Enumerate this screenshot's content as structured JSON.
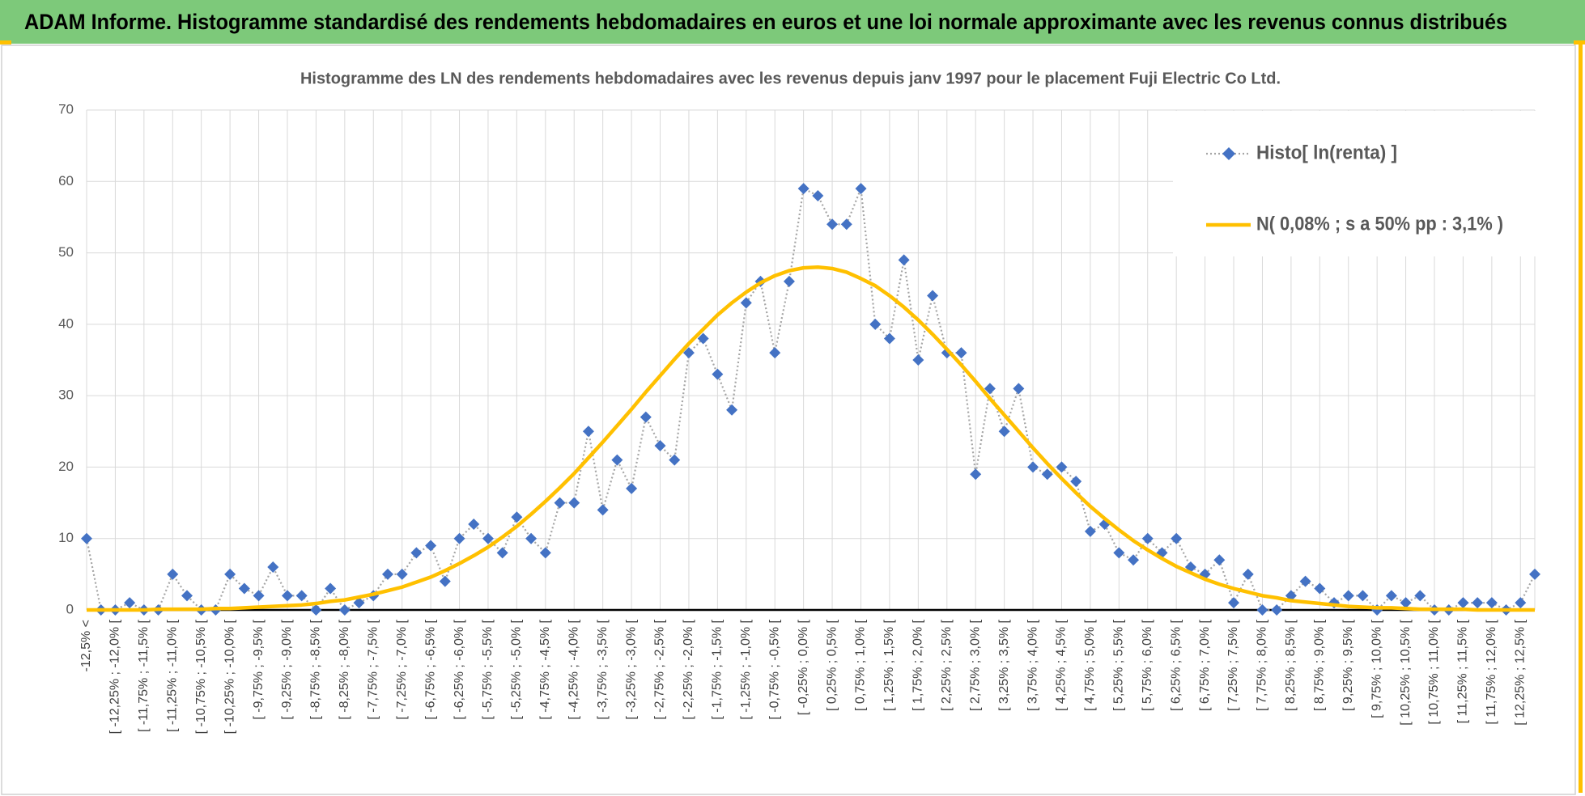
{
  "chart_data": {
    "type": "line",
    "title": "ADAM Informe. Histogramme standardisé des rendements hebdomadaires en euros et une loi normale approximante avec les revenus connus distribués",
    "subtitle": "Histogramme  des LN des rendements  hebdomadaires avec les revenus depuis janv 1997 pour le placement Fuji Electric  Co Ltd.",
    "categories": [
      "-12,5% <",
      null,
      "[ -12,25% ; -12,0% [",
      null,
      "[ -11,75% ; -11,5% [",
      null,
      "[ -11,25% ; -11,0% [",
      null,
      "[ -10,75% ; -10,5% [",
      null,
      "[ -10,25% ; -10,0% [",
      null,
      "[ -9,75% ; -9,5% [",
      null,
      "[ -9,25% ; -9,0% [",
      null,
      "[ -8,75% ; -8,5% [",
      null,
      "[ -8,25% ; -8,0% [",
      null,
      "[ -7,75% ; -7,5% [",
      null,
      "[ -7,25% ; -7,0% [",
      null,
      "[ -6,75% ; -6,5% [",
      null,
      "[ -6,25% ; -6,0% [",
      null,
      "[ -5,75% ; -5,5% [",
      null,
      "[ -5,25% ; -5,0% [",
      null,
      "[ -4,75% ; -4,5% [",
      null,
      "[ -4,25% ; -4,0% [",
      null,
      "[ -3,75% ; -3,5% [",
      null,
      "[ -3,25% ; -3,0% [",
      null,
      "[ -2,75% ; -2,5% [",
      null,
      "[ -2,25% ; -2,0% [",
      null,
      "[ -1,75% ; -1,5% [",
      null,
      "[ -1,25% ; -1,0% [",
      null,
      "[ -0,75% ; -0,5% [",
      null,
      "[ -0,25% ; 0,0% [",
      null,
      "[ 0,25% ; 0,5% [",
      null,
      "[ 0,75% ; 1,0% [",
      null,
      "[ 1,25% ; 1,5% [",
      null,
      "[ 1,75% ; 2,0% [",
      null,
      "[ 2,25% ; 2,5% [",
      null,
      "[ 2,75% ; 3,0% [",
      null,
      "[ 3,25% ; 3,5% [",
      null,
      "[ 3,75% ; 4,0% [",
      null,
      "[ 4,25% ; 4,5% [",
      null,
      "[ 4,75% ; 5,0% [",
      null,
      "[ 5,25% ; 5,5% [",
      null,
      "[ 5,75% ; 6,0% [",
      null,
      "[ 6,25% ; 6,5% [",
      null,
      "[ 6,75% ; 7,0% [",
      null,
      "[ 7,25% ; 7,5% [",
      null,
      "[ 7,75% ; 8,0% [",
      null,
      "[ 8,25% ; 8,5% [",
      null,
      "[ 8,75% ; 9,0% [",
      null,
      "[ 9,25% ; 9,5% [",
      null,
      "[ 9,75% ; 10,0% [",
      null,
      "[ 10,25% ; 10,5% [",
      null,
      "[ 10,75% ; 11,0% [",
      null,
      "[ 11,25% ; 11,5% [",
      null,
      "[ 11,75% ; 12,0% [",
      null,
      "[ 12,25% ; 12,5% [",
      null
    ],
    "series": [
      {
        "name": "Histo[ ln(renta) ]",
        "color": "#4472c4",
        "line_color": "#a5a5a5",
        "marker": "diamond",
        "line_style": "dotted",
        "values": [
          10,
          0,
          0,
          1,
          0,
          0,
          5,
          2,
          0,
          0,
          5,
          3,
          2,
          6,
          2,
          2,
          0,
          3,
          0,
          1,
          2,
          5,
          5,
          8,
          9,
          4,
          10,
          12,
          10,
          8,
          13,
          10,
          8,
          15,
          15,
          25,
          14,
          21,
          17,
          27,
          23,
          21,
          36,
          38,
          33,
          28,
          43,
          46,
          36,
          46,
          59,
          58,
          54,
          54,
          59,
          40,
          38,
          49,
          35,
          44,
          36,
          36,
          19,
          31,
          25,
          31,
          20,
          19,
          20,
          18,
          11,
          12,
          8,
          7,
          10,
          8,
          10,
          6,
          5,
          7,
          1,
          5,
          0,
          0,
          2,
          4,
          3,
          1,
          2,
          2,
          0,
          2,
          1,
          2,
          0,
          0,
          1,
          1,
          1,
          0,
          1,
          5
        ]
      },
      {
        "name": "N( 0,08% ; s a 50% pp : 3,1% )",
        "color": "#ffc000",
        "marker": "none",
        "line_style": "solid",
        "values": [
          0,
          0,
          0,
          0,
          0,
          0.1,
          0.1,
          0.1,
          0.1,
          0.2,
          0.2,
          0.3,
          0.4,
          0.5,
          0.6,
          0.7,
          0.9,
          1.2,
          1.4,
          1.8,
          2.2,
          2.7,
          3.2,
          3.9,
          4.6,
          5.5,
          6.5,
          7.6,
          8.8,
          10.2,
          11.7,
          13.4,
          15.2,
          17.1,
          19.1,
          21.3,
          23.5,
          25.8,
          28.1,
          30.5,
          32.8,
          35.1,
          37.3,
          39.3,
          41.3,
          43.0,
          44.5,
          45.8,
          46.8,
          47.5,
          47.9,
          48.0,
          47.8,
          47.3,
          46.4,
          45.4,
          44.0,
          42.4,
          40.6,
          38.6,
          36.5,
          34.3,
          32.0,
          29.6,
          27.3,
          25.0,
          22.7,
          20.5,
          18.4,
          16.4,
          14.5,
          12.8,
          11.2,
          9.7,
          8.4,
          7.2,
          6.1,
          5.2,
          4.3,
          3.6,
          3.0,
          2.5,
          2.0,
          1.7,
          1.3,
          1.1,
          0.9,
          0.7,
          0.5,
          0.4,
          0.3,
          0.3,
          0.2,
          0.1,
          0.1,
          0.1,
          0.1,
          0,
          0,
          0,
          0,
          0
        ]
      }
    ],
    "ylim": [
      0,
      70
    ],
    "yticks": [
      0,
      10,
      20,
      30,
      40,
      50,
      60,
      70
    ],
    "grid": true,
    "legend": "upper right",
    "title_background": "#7dc97a"
  }
}
